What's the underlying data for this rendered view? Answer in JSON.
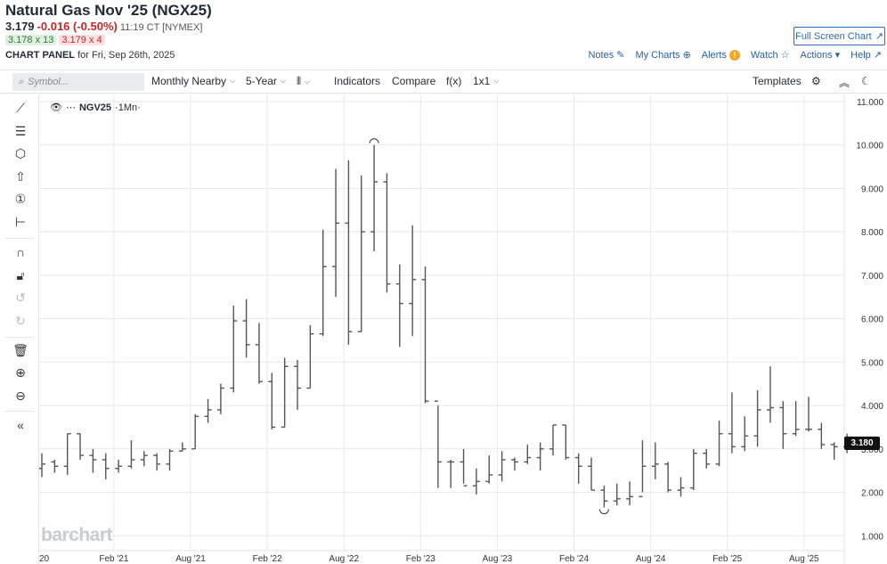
{
  "header": {
    "title": "Natural Gas Nov '25 (NGX25)",
    "price": "3.179",
    "change": "-0.016 (-0.50%)",
    "time": "11:19 CT [NYMEX]",
    "bid": "3.178 x 13",
    "ask": "3.179 x 4",
    "panel_label": "CHART PANEL",
    "panel_date": "for Fri, Sep 26th, 2025",
    "fullscreen_label": "Full Screen Chart",
    "links": {
      "notes": "Notes",
      "my_charts": "My Charts",
      "alerts": "Alerts",
      "alerts_badge": "!",
      "watch": "Watch",
      "actions": "Actions",
      "help": "Help"
    }
  },
  "toolbar": {
    "symbol_placeholder": "Symbol...",
    "period": "Monthly Nearby",
    "range": "5-Year",
    "indicators": "Indicators",
    "compare": "Compare",
    "fx": "f(x)",
    "layout": "1x1",
    "templates": "Templates"
  },
  "left_tools": [
    "line-tool-icon",
    "fib-tool-icon",
    "shape-tool-icon",
    "arrow-tool-icon",
    "number-tool-icon",
    "measure-tool-icon",
    "magnet-icon",
    "lock-icon",
    "undo-icon",
    "redo-icon",
    "trash-icon",
    "zoom-in-icon",
    "zoom-out-icon",
    "collapse-icon"
  ],
  "legend": {
    "symbol": "NGV25",
    "interval": "·1Mn·"
  },
  "watermark": "barchart",
  "last_price_tag": "3.180",
  "colors": {
    "bar": "#555555",
    "grid": "#e8e8e8",
    "accent": "#2a6bb5",
    "down": "#c62828",
    "up": "#2e7d32"
  },
  "chart_data": {
    "type": "ohlc",
    "y_ticks": [
      "1.000",
      "2.000",
      "3.000",
      "4.000",
      "5.000",
      "6.000",
      "7.000",
      "8.000",
      "9.000",
      "10.000",
      "11.000"
    ],
    "ylim": [
      0.8,
      11.0
    ],
    "x_ticks": [
      "20",
      "Feb '21",
      "Aug '21",
      "Feb '22",
      "Aug '22",
      "Feb '23",
      "Aug '23",
      "Feb '24",
      "Aug '24",
      "Feb '25",
      "Aug '25"
    ],
    "bars": [
      {
        "o": 2.55,
        "h": 2.9,
        "l": 2.35,
        "c": 2.65
      },
      {
        "o": 2.7,
        "h": 2.75,
        "l": 2.45,
        "c": 2.6
      },
      {
        "o": 2.6,
        "h": 3.35,
        "l": 2.4,
        "c": 3.35
      },
      {
        "o": 3.35,
        "h": 3.35,
        "l": 2.75,
        "c": 2.85
      },
      {
        "o": 2.85,
        "h": 3.0,
        "l": 2.45,
        "c": 2.75
      },
      {
        "o": 2.75,
        "h": 2.9,
        "l": 2.3,
        "c": 2.55
      },
      {
        "o": 2.55,
        "h": 2.75,
        "l": 2.45,
        "c": 2.6
      },
      {
        "o": 2.6,
        "h": 3.2,
        "l": 2.55,
        "c": 2.75
      },
      {
        "o": 2.75,
        "h": 2.95,
        "l": 2.6,
        "c": 2.85
      },
      {
        "o": 2.85,
        "h": 2.9,
        "l": 2.5,
        "c": 2.65
      },
      {
        "o": 2.65,
        "h": 3.0,
        "l": 2.5,
        "c": 2.95
      },
      {
        "o": 2.95,
        "h": 3.15,
        "l": 2.95,
        "c": 3.0
      },
      {
        "o": 3.0,
        "h": 3.8,
        "l": 3.0,
        "c": 3.75
      },
      {
        "o": 3.75,
        "h": 4.15,
        "l": 3.6,
        "c": 3.9
      },
      {
        "o": 3.9,
        "h": 4.5,
        "l": 3.8,
        "c": 4.4
      },
      {
        "o": 4.4,
        "h": 6.3,
        "l": 4.3,
        "c": 5.95
      },
      {
        "o": 5.95,
        "h": 6.45,
        "l": 5.1,
        "c": 5.4
      },
      {
        "o": 5.4,
        "h": 5.9,
        "l": 4.5,
        "c": 4.55
      },
      {
        "o": 4.55,
        "h": 4.75,
        "l": 3.45,
        "c": 3.5
      },
      {
        "o": 3.5,
        "h": 5.1,
        "l": 3.5,
        "c": 4.9
      },
      {
        "o": 4.9,
        "h": 5.05,
        "l": 3.9,
        "c": 4.4
      },
      {
        "o": 4.4,
        "h": 5.85,
        "l": 4.4,
        "c": 5.65
      },
      {
        "o": 5.65,
        "h": 8.05,
        "l": 5.6,
        "c": 7.2
      },
      {
        "o": 7.2,
        "h": 9.45,
        "l": 6.5,
        "c": 8.2
      },
      {
        "o": 8.2,
        "h": 9.65,
        "l": 5.4,
        "c": 5.7
      },
      {
        "o": 5.7,
        "h": 9.3,
        "l": 5.7,
        "c": 8.0
      },
      {
        "o": 8.0,
        "h": 10.0,
        "l": 7.55,
        "c": 9.15
      },
      {
        "o": 9.15,
        "h": 9.35,
        "l": 6.6,
        "c": 6.8
      },
      {
        "o": 6.8,
        "h": 7.25,
        "l": 5.35,
        "c": 6.35
      },
      {
        "o": 6.35,
        "h": 8.15,
        "l": 5.6,
        "c": 6.9
      },
      {
        "o": 6.9,
        "h": 7.2,
        "l": 4.05,
        "c": 4.1
      },
      {
        "o": 4.1,
        "h": 4.0,
        "l": 2.1,
        "c": 2.7
      },
      {
        "o": 2.7,
        "h": 2.75,
        "l": 2.1,
        "c": 2.7
      },
      {
        "o": 2.7,
        "h": 3.0,
        "l": 2.2,
        "c": 2.15
      },
      {
        "o": 2.15,
        "h": 2.55,
        "l": 1.95,
        "c": 2.25
      },
      {
        "o": 2.25,
        "h": 2.85,
        "l": 2.2,
        "c": 2.4
      },
      {
        "o": 2.4,
        "h": 2.95,
        "l": 2.25,
        "c": 2.75
      },
      {
        "o": 2.75,
        "h": 2.8,
        "l": 2.5,
        "c": 2.7
      },
      {
        "o": 2.7,
        "h": 3.1,
        "l": 2.65,
        "c": 2.8
      },
      {
        "o": 2.8,
        "h": 3.15,
        "l": 2.5,
        "c": 3.0
      },
      {
        "o": 3.0,
        "h": 3.55,
        "l": 2.85,
        "c": 3.55
      },
      {
        "o": 3.55,
        "h": 3.55,
        "l": 2.75,
        "c": 2.8
      },
      {
        "o": 2.8,
        "h": 2.9,
        "l": 2.2,
        "c": 2.6
      },
      {
        "o": 2.6,
        "h": 2.8,
        "l": 2.05,
        "c": 2.05
      },
      {
        "o": 2.05,
        "h": 2.15,
        "l": 1.65,
        "c": 1.8
      },
      {
        "o": 1.8,
        "h": 2.2,
        "l": 1.7,
        "c": 1.85
      },
      {
        "o": 1.85,
        "h": 2.25,
        "l": 1.7,
        "c": 1.9
      },
      {
        "o": 1.9,
        "h": 3.2,
        "l": 2.0,
        "c": 2.6
      },
      {
        "o": 2.6,
        "h": 3.15,
        "l": 2.3,
        "c": 2.65
      },
      {
        "o": 2.65,
        "h": 2.7,
        "l": 2.0,
        "c": 2.05
      },
      {
        "o": 2.05,
        "h": 2.35,
        "l": 1.9,
        "c": 2.1
      },
      {
        "o": 2.1,
        "h": 3.0,
        "l": 2.05,
        "c": 2.9
      },
      {
        "o": 2.9,
        "h": 3.0,
        "l": 2.55,
        "c": 2.65
      },
      {
        "o": 2.65,
        "h": 3.65,
        "l": 2.6,
        "c": 3.35
      },
      {
        "o": 3.35,
        "h": 4.3,
        "l": 2.9,
        "c": 3.05
      },
      {
        "o": 3.05,
        "h": 3.75,
        "l": 2.95,
        "c": 3.3
      },
      {
        "o": 3.3,
        "h": 4.35,
        "l": 3.05,
        "c": 3.9
      },
      {
        "o": 3.9,
        "h": 4.9,
        "l": 3.6,
        "c": 3.95
      },
      {
        "o": 3.95,
        "h": 4.1,
        "l": 3.0,
        "c": 3.35
      },
      {
        "o": 3.35,
        "h": 4.1,
        "l": 3.3,
        "c": 3.45
      },
      {
        "o": 3.45,
        "h": 4.2,
        "l": 3.4,
        "c": 3.45
      },
      {
        "o": 3.45,
        "h": 3.6,
        "l": 3.0,
        "c": 3.1
      },
      {
        "o": 3.1,
        "h": 3.15,
        "l": 2.75,
        "c": 3.05
      },
      {
        "o": 3.05,
        "h": 3.35,
        "l": 2.9,
        "c": 3.18
      }
    ]
  }
}
